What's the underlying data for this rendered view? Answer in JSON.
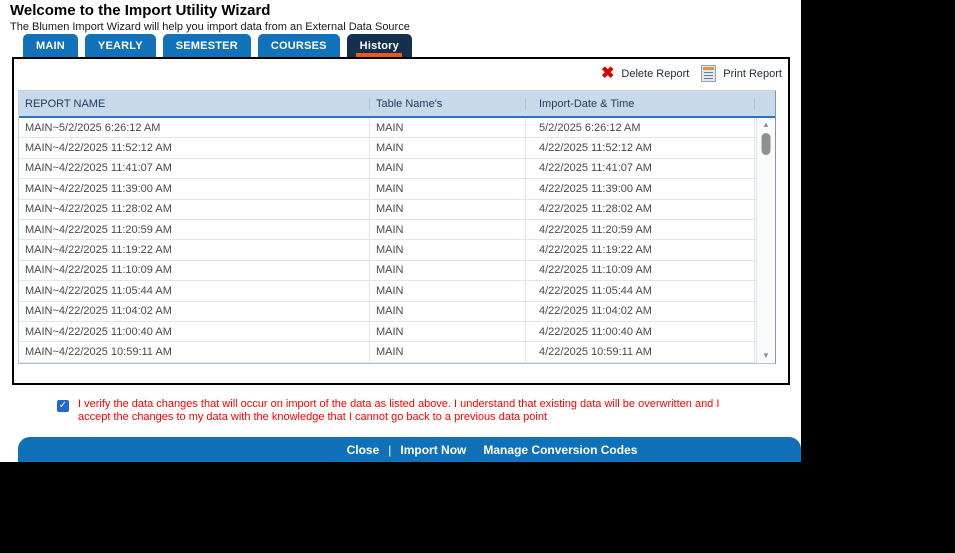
{
  "window": {
    "title": "Welcome to the Import Utility Wizard",
    "subtitle": "The Blumen Import Wizard will help you import data from an External Data Source"
  },
  "tabs": [
    {
      "label": "MAIN",
      "active": false
    },
    {
      "label": "YEARLY",
      "active": false
    },
    {
      "label": "SEMESTER",
      "active": false
    },
    {
      "label": "COURSES",
      "active": false
    },
    {
      "label": "History",
      "active": true
    }
  ],
  "toolbar": {
    "delete_label": "Delete Report",
    "print_label": "Print Report"
  },
  "table": {
    "columns": [
      "REPORT NAME",
      "Table Name's",
      "Import-Date & Time"
    ],
    "rows": [
      {
        "report_name": "MAIN~5/2/2025 6:26:12 AM",
        "table_name": "MAIN",
        "import_datetime": "5/2/2025 6:26:12 AM"
      },
      {
        "report_name": "MAIN~4/22/2025 11:52:12 AM",
        "table_name": "MAIN",
        "import_datetime": "4/22/2025 11:52:12 AM"
      },
      {
        "report_name": "MAIN~4/22/2025 11:41:07 AM",
        "table_name": "MAIN",
        "import_datetime": "4/22/2025 11:41:07 AM"
      },
      {
        "report_name": "MAIN~4/22/2025 11:39:00 AM",
        "table_name": "MAIN",
        "import_datetime": "4/22/2025 11:39:00 AM"
      },
      {
        "report_name": "MAIN~4/22/2025 11:28:02 AM",
        "table_name": "MAIN",
        "import_datetime": "4/22/2025 11:28:02 AM"
      },
      {
        "report_name": "MAIN~4/22/2025 11:20:59 AM",
        "table_name": "MAIN",
        "import_datetime": "4/22/2025 11:20:59 AM"
      },
      {
        "report_name": "MAIN~4/22/2025 11:19:22 AM",
        "table_name": "MAIN",
        "import_datetime": "4/22/2025 11:19:22 AM"
      },
      {
        "report_name": "MAIN~4/22/2025 11:10:09 AM",
        "table_name": "MAIN",
        "import_datetime": "4/22/2025 11:10:09 AM"
      },
      {
        "report_name": "MAIN~4/22/2025 11:05:44 AM",
        "table_name": "MAIN",
        "import_datetime": "4/22/2025 11:05:44 AM"
      },
      {
        "report_name": "MAIN~4/22/2025 11:04:02 AM",
        "table_name": "MAIN",
        "import_datetime": "4/22/2025 11:04:02 AM"
      },
      {
        "report_name": "MAIN~4/22/2025 11:00:40 AM",
        "table_name": "MAIN",
        "import_datetime": "4/22/2025 11:00:40 AM"
      },
      {
        "report_name": "MAIN~4/22/2025 10:59:11 AM",
        "table_name": "MAIN",
        "import_datetime": "4/22/2025 10:59:11 AM"
      }
    ]
  },
  "confirmation": {
    "checked": true,
    "text": "I verify the data changes that will occur on import of the data as listed above. I understand that existing data will be overwritten and I accept the changes to my data with the knowledge that I cannot go back to a previous data point"
  },
  "footer": {
    "close_label": "Close",
    "separator": "|",
    "import_label": "Import Now",
    "manage_label": "Manage Conversion Codes"
  },
  "icons": {
    "delete": "✖",
    "check": "✓",
    "scroll_up": "▲",
    "scroll_down": "▼"
  },
  "colors": {
    "tab_blue": "#1272b9",
    "active_tab_navy": "#14304e",
    "accent_orange": "#ee5a1a",
    "header_bg": "#c7d9ea",
    "header_text": "#1e3a5f",
    "footer_blue": "#1171b8",
    "warning_red": "#ff0000",
    "delete_red": "#d90000",
    "checkbox_blue": "#2166d1"
  }
}
